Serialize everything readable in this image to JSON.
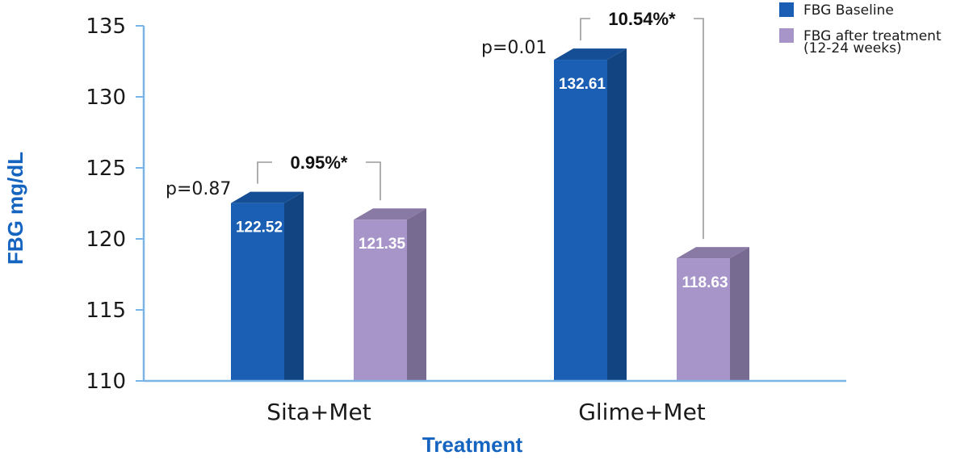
{
  "chart_data": {
    "type": "bar",
    "categories": [
      "Sita+Met",
      "Glime+Met"
    ],
    "series": [
      {
        "name": "FBG Baseline",
        "values": [
          122.52,
          132.61
        ],
        "color": "#1a5fb4"
      },
      {
        "name": "FBG after treatment (12-24 weeks)",
        "values": [
          121.35,
          118.63
        ],
        "color": "#a795c9"
      }
    ],
    "legend_lines": [
      [
        "FBG Baseline"
      ],
      [
        "FBG after treatment",
        "(12-24 weeks)"
      ]
    ],
    "data_labels": [
      [
        "122.52",
        "132.61"
      ],
      [
        "121.35",
        "118.63"
      ]
    ],
    "p_values": [
      "p=0.87",
      "p=0.01"
    ],
    "percent_changes": [
      "0.95%*",
      "10.54%*"
    ],
    "xlabel": "Treatment",
    "ylabel": "FBG mg/dL",
    "ylim": [
      110,
      135
    ],
    "yticks": [
      110,
      115,
      120,
      125,
      130,
      135
    ],
    "grid": false,
    "legend_position": "top-right",
    "axis_color": "#7cb4e6",
    "axis_title_color": "#1565c0"
  }
}
